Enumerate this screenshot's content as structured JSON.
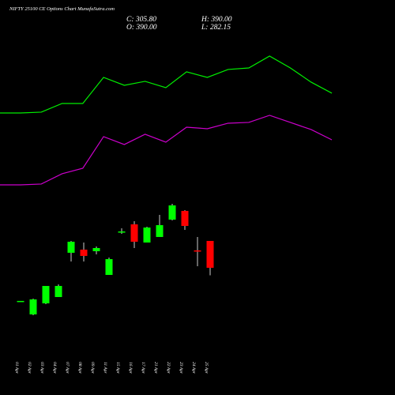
{
  "chart_data": {
    "type": "candlestick",
    "title": "NIFTY 25100  CE Options Chart MunafaSutra.com",
    "ohlc_labels": [
      "C: 305.80",
      "H: 390.00",
      "O: 390.00",
      "L: 282.15"
    ],
    "categories": [
      "01 Apr",
      "02 Apr",
      "03 Apr",
      "04 Apr",
      "07 Apr",
      "08 Apr",
      "09 Apr",
      "11 Apr",
      "15 Apr",
      "16 Apr",
      "17 Apr",
      "21 Apr",
      "22 Apr",
      "23 Apr",
      "24 Apr",
      "25 Apr"
    ],
    "open": [
      202,
      159.7,
      194.4,
      214.2,
      352.9,
      362.8,
      357.8,
      283.5,
      417,
      442,
      385,
      402.4,
      456.8,
      484.1,
      360.3,
      390
    ],
    "high": [
      202,
      209.3,
      248.9,
      253.8,
      390,
      385,
      372.7,
      338,
      429.6,
      451.9,
      434.6,
      471.7,
      506.4,
      486.6,
      402.4,
      390
    ],
    "low": [
      202,
      157.3,
      191.9,
      214.2,
      325.6,
      325.6,
      347.9,
      283.5,
      412.3,
      367.7,
      385,
      402.4,
      454.4,
      424.7,
      310.8,
      282.15
    ],
    "close": [
      202,
      206.8,
      248.9,
      248.9,
      387.5,
      343,
      367.7,
      333,
      419.7,
      387.5,
      432,
      439.5,
      501.4,
      437,
      357.8,
      305.8
    ],
    "up_color": "#00ff00",
    "down_color": "#ff0000",
    "lines": [
      {
        "color": "#00ee00",
        "values": [
          791.1,
          793.6,
          820.8,
          820.8,
          902.5,
          877.8,
          890.2,
          870.4,
          919.9,
          902.5,
          927.3,
          932.2,
          969.4,
          932.2,
          887.7,
          853.0
        ]
      },
      {
        "color": "#cc00cc",
        "values": [
          565.8,
          568.3,
          600.5,
          617.8,
          716.8,
          692.1,
          724.3,
          699.5,
          746.5,
          741.6,
          758.9,
          761.4,
          783.7,
          761.4,
          739.1,
          706.9
        ]
      }
    ],
    "ylim": [
      0,
      1100
    ]
  }
}
